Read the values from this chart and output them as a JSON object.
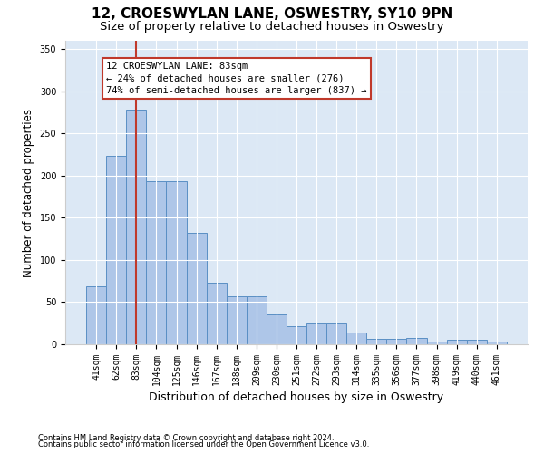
{
  "title_line1": "12, CROESWYLAN LANE, OSWESTRY, SY10 9PN",
  "title_line2": "Size of property relative to detached houses in Oswestry",
  "xlabel": "Distribution of detached houses by size in Oswestry",
  "ylabel": "Number of detached properties",
  "footnote1": "Contains HM Land Registry data © Crown copyright and database right 2024.",
  "footnote2": "Contains public sector information licensed under the Open Government Licence v3.0.",
  "categories": [
    "41sqm",
    "62sqm",
    "83sqm",
    "104sqm",
    "125sqm",
    "146sqm",
    "167sqm",
    "188sqm",
    "209sqm",
    "230sqm",
    "251sqm",
    "272sqm",
    "293sqm",
    "314sqm",
    "335sqm",
    "356sqm",
    "377sqm",
    "398sqm",
    "419sqm",
    "440sqm",
    "461sqm"
  ],
  "values": [
    69,
    223,
    278,
    193,
    193,
    132,
    73,
    57,
    57,
    35,
    22,
    25,
    25,
    14,
    6,
    6,
    7,
    3,
    5,
    5,
    3
  ],
  "bar_color": "#aec6e8",
  "bar_edge_color": "#5a8fc4",
  "highlight_index": 2,
  "highlight_line_color": "#c0392b",
  "annotation_text": "12 CROESWYLAN LANE: 83sqm\n← 24% of detached houses are smaller (276)\n74% of semi-detached houses are larger (837) →",
  "annotation_box_color": "#ffffff",
  "annotation_box_edge": "#c0392b",
  "ylim": [
    0,
    360
  ],
  "yticks": [
    0,
    50,
    100,
    150,
    200,
    250,
    300,
    350
  ],
  "bg_color": "#dce8f5",
  "fig_bg_color": "#ffffff",
  "title1_fontsize": 11,
  "title2_fontsize": 9.5,
  "xlabel_fontsize": 9,
  "ylabel_fontsize": 8.5,
  "annot_fontsize": 7.5,
  "tick_fontsize": 7
}
